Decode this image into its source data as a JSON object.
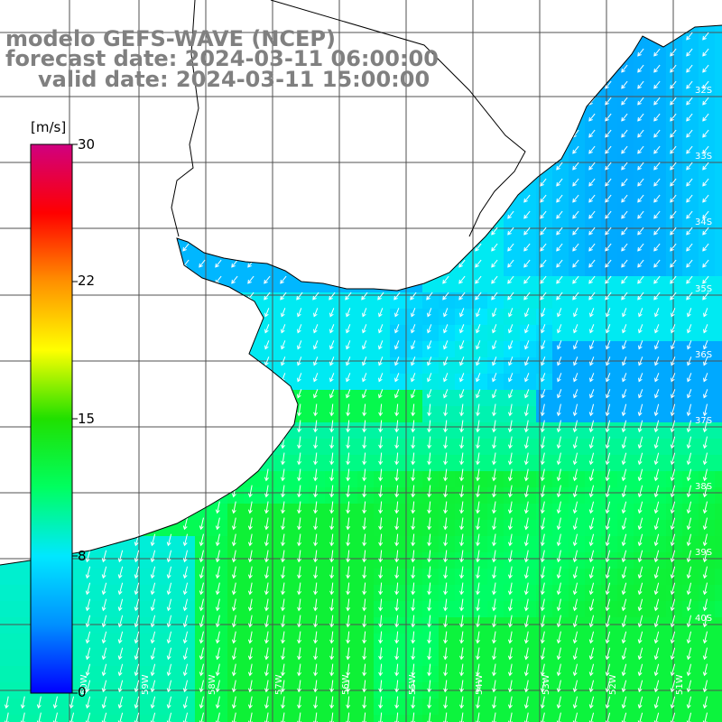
{
  "title": {
    "line1": "modelo GEFS-WAVE (NCEP)",
    "line2": "forecast date: 2024-03-11 06:00:00",
    "line3": "valid date: 2024-03-11 15:00:00"
  },
  "colorbar": {
    "unit": "[m/s]",
    "min": 0,
    "max": 30,
    "tick_labels": [
      "30",
      "22",
      "15",
      "8",
      "0"
    ],
    "colors": [
      "#0000ff",
      "#0090ff",
      "#00e8ff",
      "#00ff60",
      "#20e000",
      "#ffff00",
      "#ff9000",
      "#ff0000",
      "#d00080"
    ]
  },
  "map": {
    "lat_labels": [
      "32S",
      "33S",
      "34S",
      "35S",
      "36S",
      "37S",
      "38S",
      "39S",
      "40S"
    ],
    "lon_labels": [
      "60W",
      "59W",
      "58W",
      "57W",
      "56W",
      "55W",
      "54W",
      "53W",
      "52W",
      "51W"
    ],
    "land_color": "#ffffff",
    "coastline_color": "#000000",
    "grid_color": "#505050",
    "arrow_color": "#ffffff"
  }
}
